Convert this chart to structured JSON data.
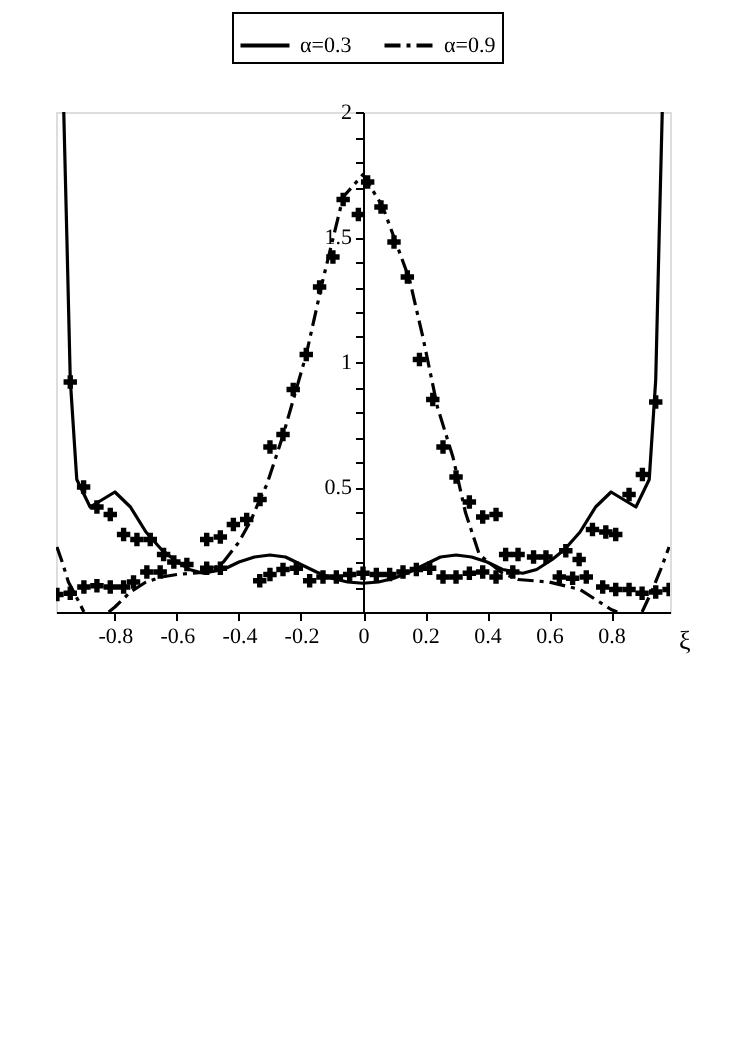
{
  "chart_data": {
    "type": "line",
    "xlabel": "ξ",
    "xlim": [
      -0.99,
      0.99
    ],
    "ylim": [
      0,
      2
    ],
    "xticks": [
      -0.8,
      -0.6,
      -0.4,
      -0.2,
      0,
      0.2,
      0.4,
      0.6,
      0.8
    ],
    "yticks": [
      {
        "value": 0.1,
        "label": null
      },
      {
        "value": 0.2,
        "label": null
      },
      {
        "value": 0.3,
        "label": null
      },
      {
        "value": 0.4,
        "label": null
      },
      0.5,
      {
        "value": 0.6,
        "label": null
      },
      {
        "value": 0.7,
        "label": null
      },
      {
        "value": 0.8,
        "label": null
      },
      {
        "value": 0.9,
        "label": null
      },
      1,
      {
        "value": 1.1,
        "label": null
      },
      {
        "value": 1.2,
        "label": null
      },
      {
        "value": 1.3,
        "label": null
      },
      {
        "value": 1.4,
        "label": null
      },
      1.5,
      {
        "value": 1.6,
        "label": null
      },
      {
        "value": 1.7,
        "label": null
      },
      {
        "value": 1.8,
        "label": null
      },
      {
        "value": 1.9,
        "label": null
      },
      2
    ],
    "grid": false,
    "legend": "top",
    "series": [
      {
        "name": "α=0.3",
        "color": "#000000",
        "line_style": "solid",
        "marker": "none",
        "x": [
          -0.965,
          -0.955,
          -0.944,
          -0.923,
          -0.88,
          -0.84,
          -0.8,
          -0.75,
          -0.7,
          -0.65,
          -0.61,
          -0.56,
          -0.515,
          -0.45,
          -0.4,
          -0.35,
          -0.3,
          -0.25,
          -0.2,
          -0.15,
          -0.1,
          -0.05,
          0,
          0.05,
          0.1,
          0.15,
          0.2,
          0.25,
          0.3,
          0.35,
          0.4,
          0.45,
          0.515,
          0.56,
          0.61,
          0.65,
          0.7,
          0.75,
          0.8,
          0.84,
          0.88,
          0.923,
          0.944,
          0.955,
          0.965
        ],
        "values": [
          2.0,
          1.5,
          0.93,
          0.53,
          0.42,
          0.45,
          0.48,
          0.42,
          0.32,
          0.25,
          0.21,
          0.17,
          0.155,
          0.17,
          0.2,
          0.22,
          0.228,
          0.22,
          0.19,
          0.16,
          0.135,
          0.12,
          0.115,
          0.12,
          0.135,
          0.16,
          0.19,
          0.22,
          0.228,
          0.22,
          0.2,
          0.17,
          0.155,
          0.17,
          0.21,
          0.25,
          0.32,
          0.42,
          0.48,
          0.45,
          0.42,
          0.53,
          0.93,
          1.5,
          2.0
        ]
      },
      {
        "name": "α=0.9",
        "color": "#000000",
        "line_style": "dashdot",
        "marker": "none",
        "x": [
          -0.987,
          -0.97,
          -0.95,
          -0.92,
          -0.9,
          -0.86,
          -0.82,
          -0.8,
          -0.75,
          -0.7,
          -0.65,
          -0.6,
          -0.5,
          -0.45,
          -0.4,
          -0.36,
          -0.333,
          -0.31,
          -0.257,
          -0.183,
          -0.129,
          -0.064,
          0,
          0.064,
          0.15,
          0.193,
          0.24,
          0.29,
          0.33,
          0.375,
          0.45,
          0.5,
          0.6,
          0.7,
          0.75,
          0.8,
          0.82,
          0.86,
          0.9,
          0.93,
          0.96,
          0.987
        ],
        "values": [
          0.26,
          0.2,
          0.12,
          0.05,
          0,
          null,
          0,
          0.02,
          0.08,
          0.12,
          0.14,
          0.15,
          0.16,
          0.2,
          0.28,
          0.37,
          0.45,
          0.51,
          0.71,
          1.03,
          1.33,
          1.66,
          1.75,
          1.62,
          1.33,
          1.1,
          0.82,
          0.62,
          0.4,
          0.23,
          0.155,
          0.13,
          0.12,
          0.09,
          0.05,
          0.01,
          0,
          null,
          0,
          0.08,
          0.17,
          0.26
        ]
      },
      {
        "type": "scatter",
        "color": "#000000",
        "marker": "cross",
        "x": [
          -0.944,
          -0.901,
          -0.858,
          -0.815,
          -0.772,
          -0.729,
          -0.686,
          -0.643,
          -0.61,
          -0.568,
          -0.504,
          -0.46,
          -0.504,
          -0.46,
          -0.418,
          -0.375,
          -0.332,
          -0.3,
          -0.258,
          -0.225,
          -0.183,
          -0.14,
          -0.097,
          -0.064,
          -0.015,
          0.015,
          0.058,
          0.1,
          0.143,
          0.182,
          0.225,
          0.258,
          0.3,
          0.343,
          0.386,
          0.429,
          0.46,
          0.5,
          0.55,
          0.59,
          0.654,
          0.697,
          0.74,
          0.783,
          0.815,
          0.858,
          0.901,
          0.944,
          -0.987,
          -0.944,
          -0.9,
          -0.858,
          -0.815,
          -0.772,
          -0.74,
          -0.697,
          -0.654,
          -0.333,
          -0.3,
          -0.258,
          -0.215,
          -0.172,
          -0.129,
          -0.086,
          -0.043,
          0,
          0.043,
          0.086,
          0.129,
          0.172,
          0.215,
          0.258,
          0.3,
          0.343,
          0.386,
          0.429,
          0.483,
          0.633,
          0.676,
          0.72,
          0.773,
          0.815,
          0.858,
          0.9,
          0.944,
          0.987
        ],
        "values": [
          0.92,
          0.5,
          0.42,
          0.39,
          0.31,
          0.29,
          0.29,
          0.23,
          0.2,
          0.19,
          0.175,
          0.175,
          0.29,
          0.3,
          0.35,
          0.37,
          0.45,
          0.66,
          0.71,
          0.89,
          1.03,
          1.3,
          1.42,
          1.65,
          1.59,
          1.72,
          1.62,
          1.48,
          1.34,
          1.01,
          0.85,
          0.66,
          0.54,
          0.44,
          0.38,
          0.39,
          0.23,
          0.23,
          0.22,
          0.22,
          0.245,
          0.21,
          0.33,
          0.32,
          0.31,
          0.47,
          0.55,
          0.84,
          0.07,
          0.075,
          0.1,
          0.105,
          0.1,
          0.1,
          0.12,
          0.16,
          0.16,
          0.125,
          0.15,
          0.17,
          0.175,
          0.125,
          0.14,
          0.14,
          0.15,
          0.155,
          0.15,
          0.15,
          0.16,
          0.17,
          0.175,
          0.14,
          0.14,
          0.155,
          0.16,
          0.14,
          0.16,
          0.14,
          0.135,
          0.14,
          0.1,
          0.09,
          0.09,
          0.075,
          0.08,
          0.09
        ]
      }
    ]
  }
}
